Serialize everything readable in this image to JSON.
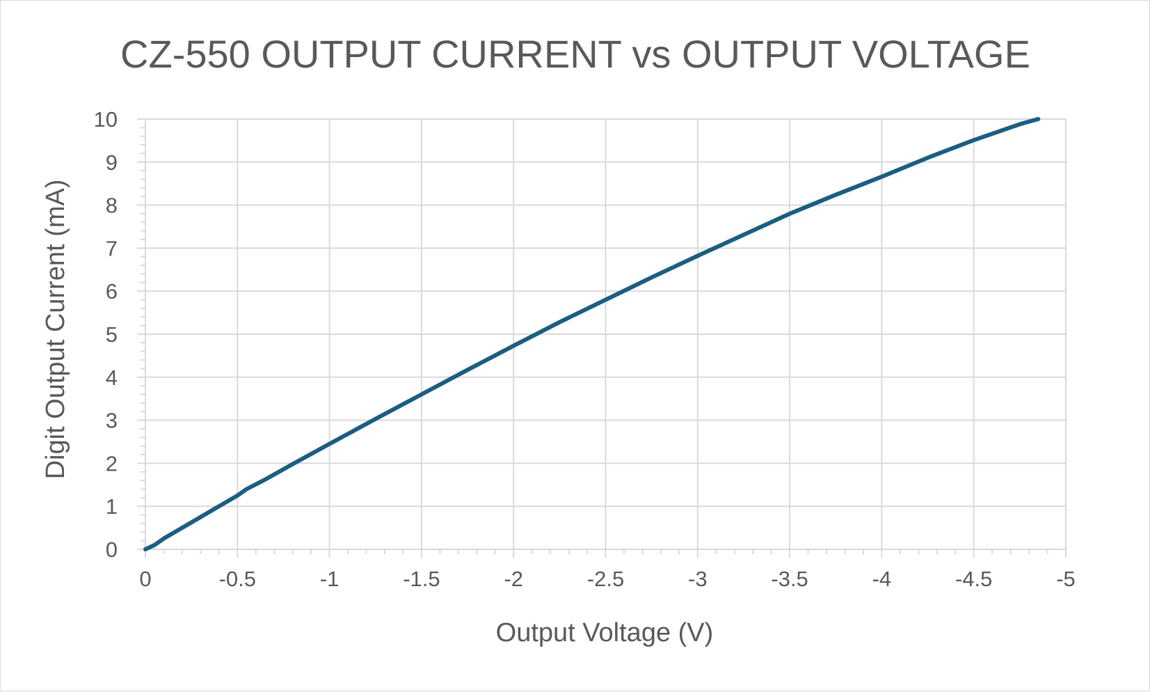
{
  "chart_data": {
    "type": "line",
    "title": "CZ-550 OUTPUT CURRENT vs OUTPUT VOLTAGE",
    "xlabel": "Output Voltage (V)",
    "ylabel": "Digit Output Current (mA)",
    "xlim": [
      0,
      -5
    ],
    "ylim": [
      0,
      10
    ],
    "x_ticks": [
      0,
      -0.5,
      -1,
      -1.5,
      -2,
      -2.5,
      -3,
      -3.5,
      -4,
      -4.5,
      -5
    ],
    "x_tick_labels": [
      "0",
      "-0.5",
      "-1",
      "-1.5",
      "-2",
      "-2.5",
      "-3",
      "-3.5",
      "-4",
      "-4.5",
      "-5"
    ],
    "y_ticks": [
      0,
      1,
      2,
      3,
      4,
      5,
      6,
      7,
      8,
      9,
      10
    ],
    "y_tick_labels": [
      "0",
      "1",
      "2",
      "3",
      "4",
      "5",
      "6",
      "7",
      "8",
      "9",
      "10"
    ],
    "grid": true,
    "legend": "none",
    "colors": {
      "line": "#1b5e80",
      "grid": "#d9d9d9",
      "text": "#595959"
    },
    "series": [
      {
        "x": [
          0,
          -0.05,
          -0.1,
          -0.2,
          -0.3,
          -0.4,
          -0.5,
          -0.55,
          -0.65,
          -0.8,
          -1,
          -1.25,
          -1.5,
          -1.75,
          -2,
          -2.25,
          -2.5,
          -2.75,
          -3,
          -3.25,
          -3.5,
          -3.75,
          -4,
          -4.25,
          -4.5,
          -4.75,
          -4.85
        ],
        "y": [
          0,
          0.1,
          0.25,
          0.5,
          0.75,
          1.0,
          1.25,
          1.4,
          1.62,
          1.98,
          2.45,
          3.03,
          3.6,
          4.17,
          4.73,
          5.28,
          5.8,
          6.32,
          6.82,
          7.31,
          7.8,
          8.24,
          8.66,
          9.1,
          9.51,
          9.88,
          10.0
        ]
      }
    ]
  }
}
